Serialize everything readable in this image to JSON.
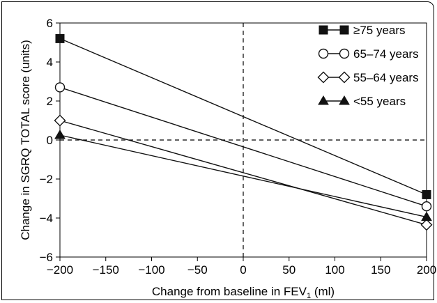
{
  "chart_data": {
    "type": "line",
    "xlabel": "Change from baseline in FEV",
    "xlabel_subscript": "1",
    "xlabel_unit": " (ml)",
    "ylabel": "Change in SGRQ TOTAL score (units)",
    "xlim": [
      -200,
      200
    ],
    "ylim": [
      -6,
      6
    ],
    "xticks": [
      -200,
      -150,
      -100,
      -50,
      0,
      50,
      100,
      150,
      200
    ],
    "yticks": [
      -6,
      -4,
      -2,
      0,
      2,
      4,
      6
    ],
    "xtick_labels": [
      "−200",
      "−150",
      "−100",
      "−50",
      "0",
      "50",
      "100",
      "150",
      "200"
    ],
    "ytick_labels": [
      "−6",
      "−4",
      "−2",
      "0",
      "2",
      "4",
      "6"
    ],
    "reference_lines": {
      "x": 0,
      "y": 0,
      "style": "dashed"
    },
    "legend_position": "top-right",
    "x": [
      -200,
      200
    ],
    "series": [
      {
        "name": "≥75 years",
        "marker": "square-filled",
        "values": [
          5.2,
          -2.8
        ]
      },
      {
        "name": "65–74 years",
        "marker": "circle-open",
        "values": [
          2.7,
          -3.4
        ]
      },
      {
        "name": "55–64 years",
        "marker": "diamond-open",
        "values": [
          1.0,
          -4.35
        ]
      },
      {
        "name": "<55 years",
        "marker": "triangle-filled",
        "values": [
          0.25,
          -3.95
        ]
      }
    ]
  }
}
